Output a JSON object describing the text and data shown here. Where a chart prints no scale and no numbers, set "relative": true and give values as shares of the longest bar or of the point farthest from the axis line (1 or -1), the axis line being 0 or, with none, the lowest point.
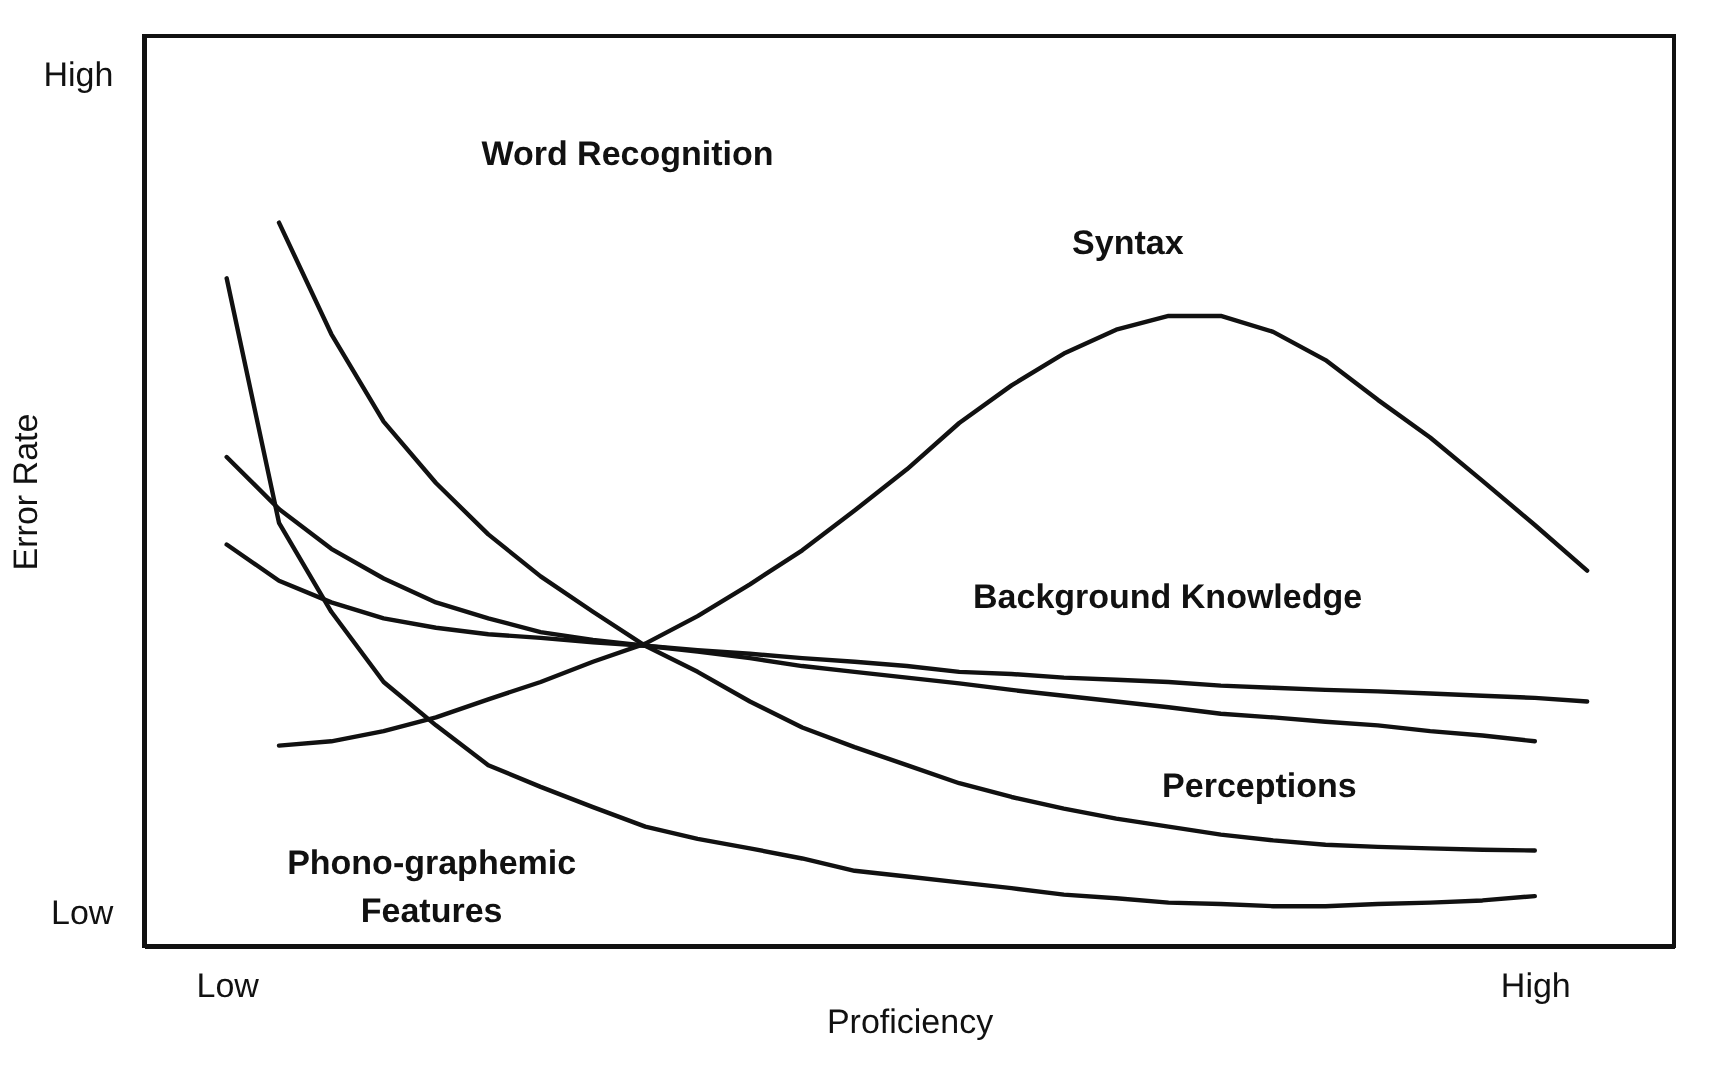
{
  "chart_data": {
    "type": "line",
    "relative": true,
    "xlabel": "Proficiency",
    "ylabel": "Error Rate",
    "grid": false,
    "marker": "none",
    "line_style": "solid",
    "categories": [
      null,
      "Low",
      null,
      null,
      null,
      null,
      null,
      null,
      null,
      null,
      null,
      null,
      null,
      null,
      null,
      null,
      null,
      null,
      null,
      null,
      null,
      null,
      null,
      null,
      null,
      null,
      "High",
      null,
      null
    ],
    "series": [
      {
        "color": "#111111",
        "values": [
          null,
          0.923,
          0.585,
          0.462,
          0.365,
          0.305,
          0.25,
          0.22,
          0.192,
          0.165,
          0.148,
          0.135,
          0.121,
          0.104,
          0.096,
          0.088,
          0.08,
          0.071,
          0.066,
          0.06,
          0.058,
          0.055,
          0.055,
          0.058,
          0.06,
          0.063,
          0.069,
          null,
          null
        ]
      },
      {
        "color": "#111111",
        "values": [
          null,
          null,
          1.0,
          0.846,
          0.725,
          0.64,
          0.569,
          0.511,
          0.462,
          0.415,
          0.379,
          0.338,
          0.302,
          0.275,
          0.25,
          0.225,
          0.206,
          0.19,
          0.176,
          0.165,
          0.154,
          0.146,
          0.14,
          0.137,
          0.135,
          0.133,
          0.132,
          null,
          null
        ]
      },
      {
        "color": "#111111",
        "values": [
          null,
          0.676,
          0.604,
          0.549,
          0.508,
          0.475,
          0.453,
          0.434,
          0.423,
          0.415,
          0.407,
          0.398,
          0.387,
          0.379,
          0.371,
          0.363,
          0.354,
          0.346,
          0.338,
          0.33,
          0.321,
          0.316,
          0.31,
          0.305,
          0.297,
          0.291,
          0.283,
          null,
          null
        ]
      },
      {
        "color": "#111111",
        "values": [
          null,
          0.555,
          0.505,
          0.475,
          0.453,
          0.44,
          0.431,
          0.426,
          0.42,
          0.415,
          0.409,
          0.404,
          0.398,
          0.393,
          0.387,
          0.379,
          0.376,
          0.371,
          0.368,
          0.365,
          0.36,
          0.357,
          0.354,
          0.352,
          0.349,
          0.346,
          0.343,
          0.338,
          null
        ]
      },
      {
        "color": "#111111",
        "values": [
          null,
          null,
          0.277,
          0.283,
          0.297,
          0.316,
          0.341,
          0.365,
          0.393,
          0.418,
          0.456,
          0.5,
          0.547,
          0.602,
          0.659,
          0.723,
          0.775,
          0.819,
          0.852,
          0.871,
          0.871,
          0.849,
          0.81,
          0.755,
          0.703,
          0.643,
          0.582,
          0.519,
          null
        ]
      }
    ],
    "annotations": [
      "High",
      "Low",
      "Phono-graphemic\nFeatures",
      "Word Recognition",
      "Perceptions",
      "Background Knowledge",
      "Syntax"
    ]
  }
}
